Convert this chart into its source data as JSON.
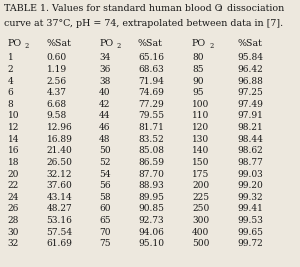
{
  "title1": "TABLE 1. Values for standard human blood O",
  "title1_sub": "2",
  "title1_end": " dissociation",
  "title2": "curve at 37°C, pH = 74, extrapolated between data in [7].",
  "col1_po2": [
    1,
    2,
    4,
    6,
    8,
    10,
    12,
    14,
    16,
    18,
    20,
    22,
    24,
    26,
    28,
    30,
    32
  ],
  "col1_sat": [
    "0.60",
    "1.19",
    "2.56",
    "4.37",
    "6.68",
    "9.58",
    "12.96",
    "16.89",
    "21.40",
    "26.50",
    "32.12",
    "37.60",
    "43.14",
    "48.27",
    "53.16",
    "57.54",
    "61.69"
  ],
  "col2_po2": [
    34,
    36,
    38,
    40,
    42,
    44,
    46,
    48,
    50,
    52,
    54,
    56,
    58,
    60,
    65,
    70,
    75
  ],
  "col2_sat": [
    "65.16",
    "68.63",
    "71.94",
    "74.69",
    "77.29",
    "79.55",
    "81.71",
    "83.52",
    "85.08",
    "86.59",
    "87.70",
    "88.93",
    "89.95",
    "90.85",
    "92.73",
    "94.06",
    "95.10"
  ],
  "col3_po2": [
    80,
    85,
    90,
    95,
    100,
    110,
    120,
    130,
    140,
    150,
    175,
    200,
    225,
    250,
    300,
    400,
    500
  ],
  "col3_sat": [
    "95.84",
    "96.42",
    "96.88",
    "97.25",
    "97.49",
    "97.91",
    "98.21",
    "98.44",
    "98.62",
    "98.77",
    "99.03",
    "99.20",
    "99.32",
    "99.41",
    "99.53",
    "99.65",
    "99.72"
  ],
  "bg_color": "#ede8de",
  "text_color": "#1a1a1a",
  "title_fs": 6.8,
  "header_fs": 6.8,
  "data_fs": 6.5
}
